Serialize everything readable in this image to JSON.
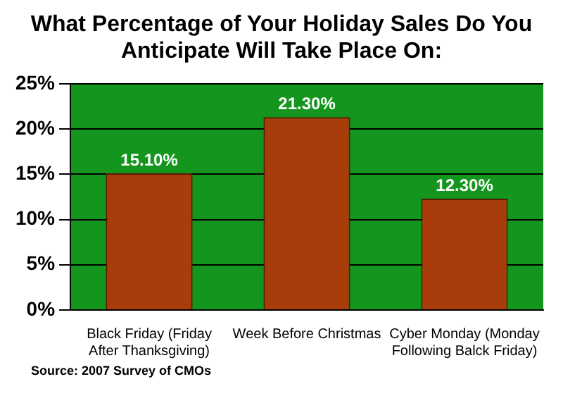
{
  "chart_data": {
    "type": "bar",
    "title": "What Percentage of Your Holiday Sales Do You Anticipate Will Take Place On:",
    "categories": [
      "Black Friday (Friday After Thanksgiving)",
      "Week Before Christmas",
      "Cyber Monday (Monday Following Balck Friday)"
    ],
    "values": [
      15.1,
      21.3,
      12.3
    ],
    "color": "#a83c0a",
    "value_labels": [
      "15.10%",
      "21.30%",
      "12.30%"
    ],
    "ylim": [
      0,
      25
    ],
    "yticks": [
      {
        "value": 0,
        "label": "0%"
      },
      {
        "value": 5,
        "label": "5%"
      },
      {
        "value": 10,
        "label": "10%"
      },
      {
        "value": 15,
        "label": "15%"
      },
      {
        "value": 20,
        "label": "20%"
      },
      {
        "value": 25,
        "label": "25%"
      }
    ],
    "grid": "y",
    "legend": false,
    "annotations": [
      "Source: 2007 Survey of CMOs"
    ]
  }
}
